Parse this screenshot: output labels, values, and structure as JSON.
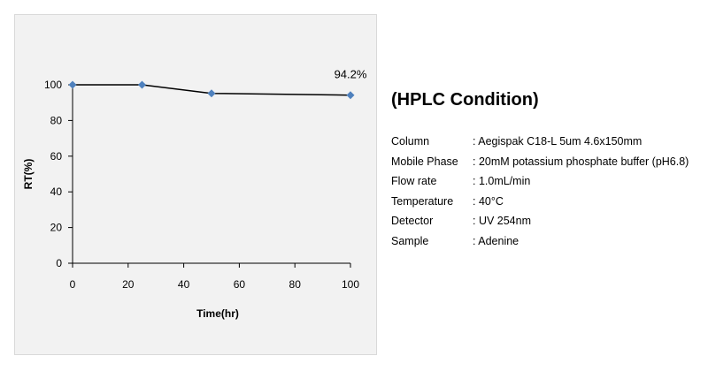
{
  "chart_data": {
    "type": "line",
    "x": [
      0,
      25,
      50,
      100
    ],
    "series": [
      {
        "values": [
          100,
          100,
          95.2,
          94.2
        ]
      }
    ],
    "xlabel": "Time(hr)",
    "ylabel": "RT(%)",
    "xlim": [
      0,
      100
    ],
    "ylim": [
      0,
      100
    ],
    "xticks": [
      "0",
      "20",
      "40",
      "60",
      "80",
      "100"
    ],
    "yticks": [
      "0",
      "20",
      "40",
      "60",
      "80",
      "100"
    ],
    "data_labels": [
      {
        "x": 100,
        "text": "94.2%"
      }
    ],
    "grid": false,
    "series_color": "#4f81bd",
    "line_color": "#000000"
  },
  "conditions": {
    "title": "(HPLC Condition)",
    "rows": [
      {
        "key": "Column",
        "value": ":  Aegispak C18-L 5um 4.6x150mm"
      },
      {
        "key": "Mobile Phase",
        "value": ":  20mM  potassium phosphate buffer (pH6.8)"
      },
      {
        "key": "Flow rate",
        "value": ":  1.0mL/min"
      },
      {
        "key": "Temperature",
        "value": ":  40°C"
      },
      {
        "key": "Detector",
        "value": ":  UV 254nm"
      },
      {
        "key": "Sample",
        "value": ":   Adenine"
      }
    ]
  }
}
